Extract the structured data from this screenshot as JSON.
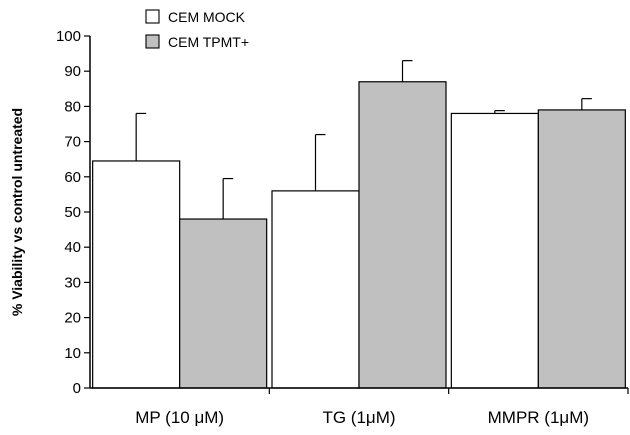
{
  "chart_data": {
    "type": "bar",
    "categories": [
      "MP (10 μM)",
      "TG (1μM)",
      "MMPR (1μM)"
    ],
    "series": [
      {
        "name": "CEM MOCK",
        "values": [
          64.5,
          56,
          78
        ],
        "errors": [
          13.5,
          16,
          0.8
        ],
        "color": "#ffffff"
      },
      {
        "name": "CEM TPMT+",
        "values": [
          48,
          87,
          79
        ],
        "errors": [
          11.5,
          6,
          3.2
        ],
        "color": "#c0c0c0"
      }
    ],
    "title": "",
    "xlabel": "",
    "ylabel": "% Viability vs control untreated",
    "ylim": [
      0,
      100
    ],
    "yticks": [
      0,
      10,
      20,
      30,
      40,
      50,
      60,
      70,
      80,
      90,
      100
    ],
    "error_bars": "upper",
    "grid": false,
    "legend": "top-left"
  }
}
